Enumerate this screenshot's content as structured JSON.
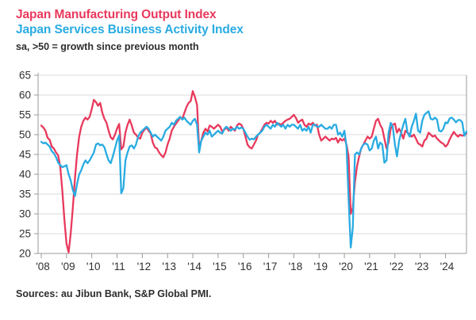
{
  "header": {
    "title_manufacturing": "Japan Manufacturing Output Index",
    "title_services": "Japan Services Business Activity Index",
    "subtitle": "sa, >50 = growth since previous month"
  },
  "footer": {
    "source": "Sources: au Jibun Bank, S&P Global PMI."
  },
  "colors": {
    "manufacturing": "#e8395c",
    "services": "#29abe2",
    "grid": "#d9d9d9",
    "axis": "#9b9b9b",
    "tick_text": "#303032",
    "body_text": "#2d2d2f"
  },
  "chart_data": {
    "type": "line",
    "title": "Japan Manufacturing Output Index / Japan Services Business Activity Index",
    "subtitle": "sa, >50 = growth since previous month",
    "x_start": "2008-01",
    "x_end": "2024-11",
    "x_frequency": "monthly",
    "x_tick_labels": [
      "'08",
      "'09",
      "'10",
      "'11",
      "'12",
      "'13",
      "'14",
      "'15",
      "'16",
      "'17",
      "'18",
      "'19",
      "'20",
      "'21",
      "'22",
      "'23",
      "'24"
    ],
    "ylim": [
      20,
      65
    ],
    "y_ticks": [
      20,
      25,
      30,
      35,
      40,
      45,
      50,
      55,
      60,
      65
    ],
    "grid": "horizontal",
    "legend": "titles act as legend (colored headings)",
    "reference_level": 50,
    "series": [
      {
        "name": "Japan Manufacturing Output Index",
        "color": "#e8395c",
        "values": [
          52.3,
          51.8,
          51.0,
          49.2,
          48.7,
          47.0,
          46.5,
          45.5,
          44.8,
          42.0,
          36.0,
          28.5,
          22.5,
          20.3,
          25.0,
          31.5,
          39.0,
          45.0,
          49.5,
          52.0,
          53.5,
          54.3,
          53.8,
          54.5,
          56.5,
          58.8,
          58.2,
          57.3,
          58.0,
          55.5,
          54.0,
          53.0,
          51.0,
          49.3,
          48.8,
          50.0,
          51.5,
          52.7,
          46.3,
          47.0,
          50.5,
          52.5,
          53.8,
          52.3,
          50.5,
          50.0,
          49.2,
          49.0,
          50.5,
          51.2,
          51.8,
          51.0,
          50.3,
          48.0,
          46.8,
          46.5,
          45.5,
          44.8,
          44.3,
          45.5,
          47.5,
          49.0,
          51.0,
          52.0,
          52.8,
          53.5,
          54.3,
          54.0,
          55.5,
          57.0,
          58.0,
          58.5,
          61.0,
          59.5,
          57.5,
          46.5,
          48.5,
          50.5,
          51.5,
          50.8,
          52.3,
          52.0,
          51.5,
          52.0,
          52.5,
          52.0,
          50.8,
          51.3,
          51.8,
          51.0,
          52.0,
          51.5,
          51.0,
          52.3,
          52.8,
          52.5,
          51.5,
          49.5,
          47.5,
          46.8,
          46.5,
          47.5,
          48.5,
          50.0,
          50.5,
          51.5,
          52.5,
          53.0,
          52.8,
          53.5,
          53.0,
          53.5,
          52.5,
          52.8,
          52.5,
          53.0,
          53.5,
          53.8,
          54.0,
          54.5,
          55.0,
          54.2,
          53.0,
          53.5,
          53.8,
          52.5,
          52.0,
          52.8,
          52.5,
          53.0,
          52.3,
          52.5,
          50.0,
          48.5,
          49.0,
          49.5,
          49.0,
          48.5,
          49.0,
          48.8,
          49.2,
          48.0,
          49.0,
          48.5,
          49.0,
          47.5,
          44.5,
          30.0,
          31.5,
          38.0,
          42.0,
          44.5,
          46.5,
          47.5,
          48.5,
          49.5,
          49.0,
          49.5,
          51.5,
          53.5,
          54.0,
          52.5,
          51.5,
          49.0,
          46.5,
          48.0,
          51.5,
          52.5,
          52.8,
          50.5,
          51.5,
          50.5,
          49.0,
          51.0,
          50.5,
          50.0,
          49.5,
          50.0,
          49.0,
          47.8,
          47.5,
          47.0,
          48.5,
          49.0,
          50.5,
          50.0,
          49.5,
          49.8,
          49.0,
          48.5,
          48.0,
          47.7,
          47.0,
          47.5,
          48.8,
          49.8,
          50.7,
          50.0,
          49.5,
          50.0,
          49.7,
          50.0,
          50.3
        ]
      },
      {
        "name": "Japan Services Business Activity Index",
        "color": "#29abe2",
        "values": [
          48.2,
          47.8,
          48.0,
          47.5,
          47.0,
          45.8,
          45.3,
          44.3,
          43.0,
          42.3,
          41.8,
          42.0,
          42.3,
          40.0,
          38.5,
          36.0,
          34.5,
          37.5,
          40.0,
          41.0,
          42.5,
          43.5,
          42.8,
          43.5,
          44.5,
          45.5,
          47.5,
          47.8,
          47.3,
          47.5,
          46.8,
          45.0,
          43.5,
          42.8,
          44.5,
          46.5,
          48.5,
          49.8,
          35.2,
          36.5,
          43.5,
          45.5,
          47.0,
          47.3,
          46.5,
          47.5,
          49.5,
          50.5,
          51.0,
          51.5,
          52.0,
          51.5,
          50.5,
          49.5,
          50.0,
          49.5,
          49.0,
          48.5,
          49.5,
          51.0,
          51.5,
          52.0,
          53.0,
          52.5,
          53.5,
          54.0,
          54.5,
          53.8,
          54.3,
          53.5,
          53.0,
          52.5,
          53.5,
          54.0,
          52.5,
          45.5,
          48.5,
          49.5,
          50.5,
          50.0,
          51.0,
          49.5,
          50.0,
          50.5,
          51.0,
          50.5,
          50.3,
          51.5,
          52.0,
          51.5,
          51.0,
          51.5,
          51.3,
          52.0,
          51.5,
          51.8,
          51.5,
          50.5,
          49.5,
          48.7,
          49.0,
          48.8,
          49.5,
          50.0,
          50.5,
          51.0,
          52.0,
          52.5,
          52.0,
          51.5,
          52.5,
          52.0,
          53.0,
          52.5,
          52.0,
          52.5,
          51.5,
          52.5,
          52.0,
          52.5,
          52.5,
          52.0,
          51.5,
          52.5,
          51.0,
          51.5,
          51.0,
          52.0,
          50.5,
          52.5,
          52.5,
          52.0,
          52.0,
          52.5,
          52.0,
          51.5,
          51.5,
          52.0,
          51.5,
          52.5,
          52.5,
          50.0,
          50.5,
          49.5,
          51.0,
          47.0,
          33.8,
          21.5,
          26.5,
          45.0,
          45.5,
          45.0,
          46.5,
          47.5,
          47.8,
          47.5,
          46.0,
          46.5,
          48.5,
          49.5,
          46.5,
          48.0,
          47.5,
          42.9,
          43.5,
          50.5,
          53.0,
          52.0,
          47.5,
          44.5,
          48.5,
          50.5,
          52.5,
          54.0,
          50.5,
          49.5,
          52.0,
          53.5,
          55.3,
          51.0,
          50.5,
          53.5,
          55.0,
          55.5,
          55.9,
          54.0,
          53.8,
          54.3,
          53.8,
          51.0,
          50.8,
          51.5,
          53.1,
          52.9,
          54.1,
          54.3,
          53.8,
          53.1,
          53.7,
          53.7,
          53.1,
          49.7,
          50.8
        ]
      }
    ]
  }
}
